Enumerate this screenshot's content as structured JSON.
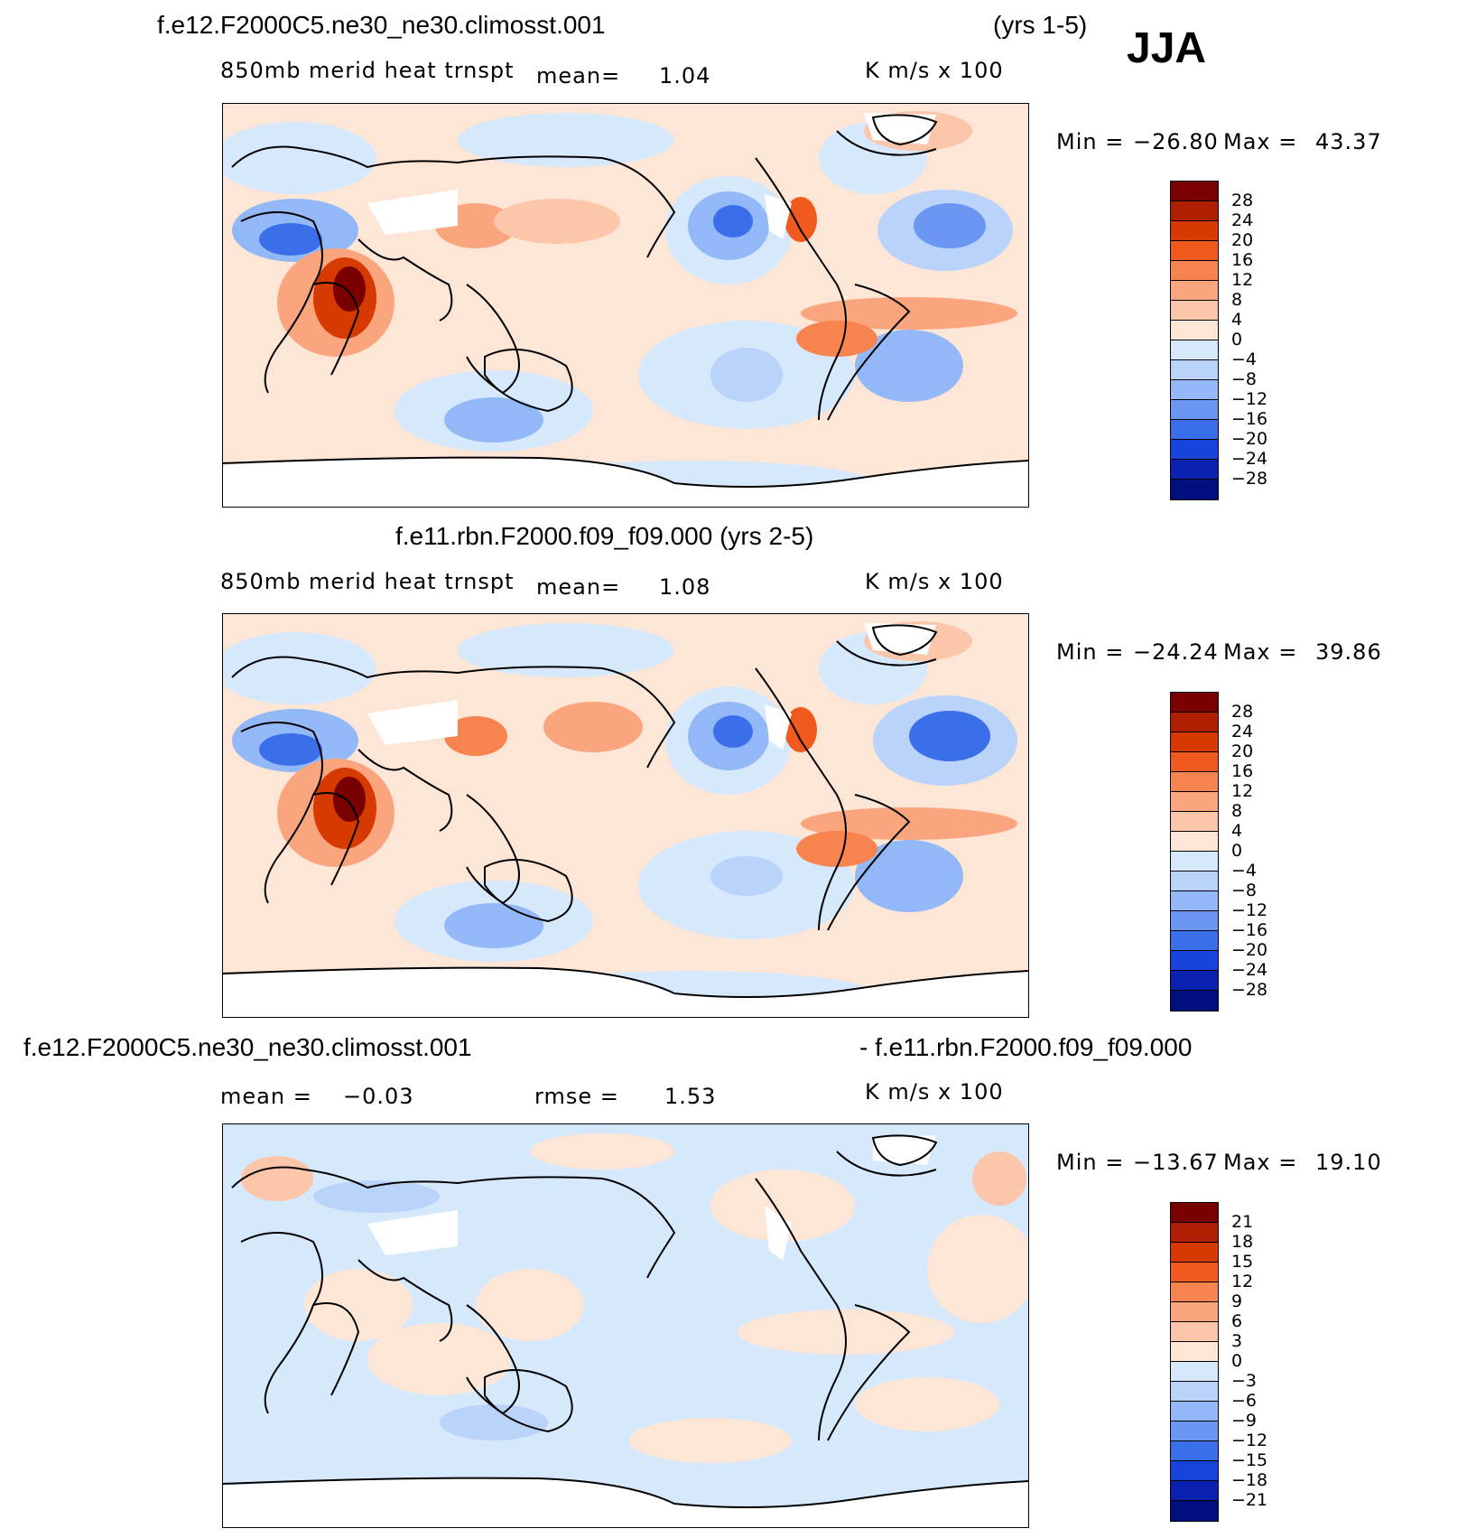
{
  "season": "JJA",
  "panels": [
    {
      "title_left": "f.e12.F2000C5.ne30_ne30.climosst.001",
      "title_right": "(yrs 1-5)",
      "variable": "850mb  merid  heat  trnspt",
      "mean_label": "mean=",
      "mean_value": "1.04",
      "units": "K  m/s  x  100",
      "min_label": "Min  =",
      "min_value": "−26.80",
      "max_label": "Max  =",
      "max_value": "43.37",
      "levels": [
        "28",
        "24",
        "20",
        "16",
        "12",
        "8",
        "4",
        "0",
        "−4",
        "−8",
        "−12",
        "−16",
        "−20",
        "−24",
        "−28"
      ],
      "colors": [
        "#7a0000",
        "#b01e00",
        "#d73a00",
        "#f05a1e",
        "#f7844f",
        "#fba57f",
        "#fcc6ab",
        "#fde6d6",
        "#d6e8fc",
        "#b9d3fb",
        "#93b8f8",
        "#6b97f2",
        "#3b6fe9",
        "#1745da",
        "#0a22b0",
        "#000f80"
      ]
    },
    {
      "title_center": "f.e11.rbn.F2000.f09_f09.000 (yrs 2-5)",
      "variable": "850mb  merid  heat  trnspt",
      "mean_label": "mean=",
      "mean_value": "1.08",
      "units": "K  m/s  x  100",
      "min_label": "Min  =",
      "min_value": "−24.24",
      "max_label": "Max  =",
      "max_value": "39.86",
      "levels": [
        "28",
        "24",
        "20",
        "16",
        "12",
        "8",
        "4",
        "0",
        "−4",
        "−8",
        "−12",
        "−16",
        "−20",
        "−24",
        "−28"
      ],
      "colors": [
        "#7a0000",
        "#b01e00",
        "#d73a00",
        "#f05a1e",
        "#f7844f",
        "#fba57f",
        "#fcc6ab",
        "#fde6d6",
        "#d6e8fc",
        "#b9d3fb",
        "#93b8f8",
        "#6b97f2",
        "#3b6fe9",
        "#1745da",
        "#0a22b0",
        "#000f80"
      ]
    },
    {
      "title_left": "f.e12.F2000C5.ne30_ne30.climosst.001",
      "title_right": "- f.e11.rbn.F2000.f09_f09.000",
      "mean_label": "mean  =",
      "mean_value": "−0.03",
      "rmse_label": "rmse  =",
      "rmse_value": "1.53",
      "units": "K  m/s  x  100",
      "min_label": "Min  =",
      "min_value": "−13.67",
      "max_label": "Max  =",
      "max_value": "19.10",
      "levels": [
        "21",
        "18",
        "15",
        "12",
        "9",
        "6",
        "3",
        "0",
        "−3",
        "−6",
        "−9",
        "−12",
        "−15",
        "−18",
        "−21"
      ],
      "colors": [
        "#7a0000",
        "#b01e00",
        "#d73a00",
        "#f05a1e",
        "#f7844f",
        "#fba57f",
        "#fcc6ab",
        "#fde6d6",
        "#d6e8fc",
        "#b9d3fb",
        "#93b8f8",
        "#6b97f2",
        "#3b6fe9",
        "#1745da",
        "#0a22b0",
        "#000f80"
      ]
    }
  ]
}
